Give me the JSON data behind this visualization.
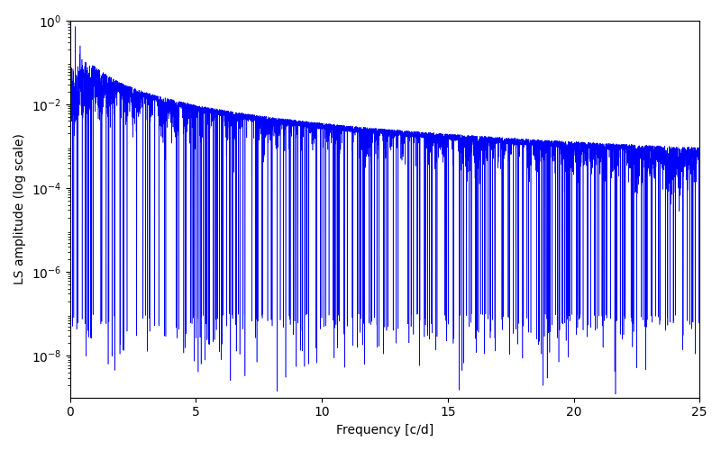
{
  "title": "",
  "xlabel": "Frequency [c/d]",
  "ylabel": "LS amplitude (log scale)",
  "line_color": "blue",
  "xlim": [
    0,
    25
  ],
  "ylim_log": [
    -9,
    0
  ],
  "background_color": "#ffffff",
  "figsize": [
    8.0,
    5.0
  ],
  "dpi": 100,
  "seed": 12345,
  "n_points": 8000,
  "freq_max": 25.0,
  "peak_amplitude": 0.72,
  "yticks_log": [
    0,
    -2,
    -4,
    -6,
    -8
  ],
  "linewidth": 0.4
}
